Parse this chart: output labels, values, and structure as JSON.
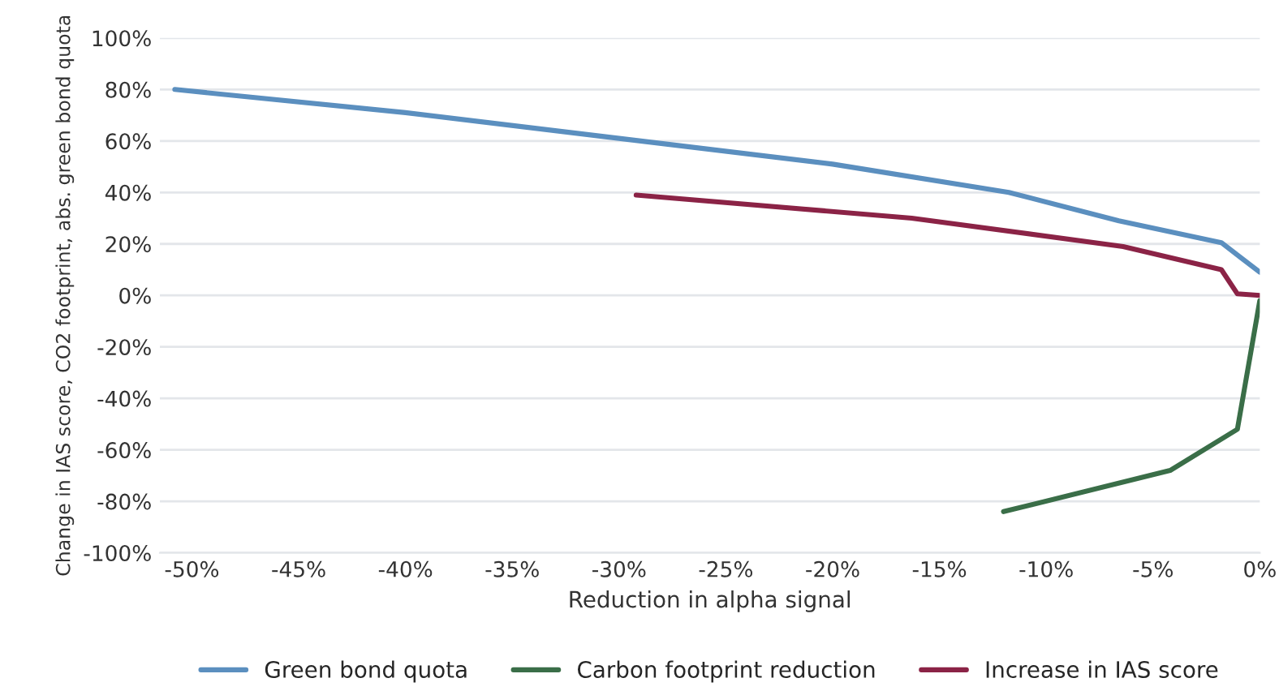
{
  "chart_data": {
    "type": "line",
    "xlabel": "Reduction in alpha signal",
    "ylabel": "Change in IAS score, CO2 footprint, abs. green bond quota",
    "series": [
      {
        "name": "Green bond quota",
        "color": "#5b8fbf",
        "x": [
          -50.8,
          -40,
          -30,
          -20,
          -11.75,
          -6.6,
          -1.8,
          0
        ],
        "values": [
          80,
          71,
          61,
          51,
          40,
          29,
          20.5,
          9
        ]
      },
      {
        "name": "Carbon footprint reduction",
        "color": "#3a6e48",
        "x": [
          -12.0,
          -4.2,
          -1.05,
          0
        ],
        "values": [
          -84,
          -68,
          -52,
          -2
        ]
      },
      {
        "name": "Increase in IAS score",
        "color": "#8b2346",
        "x": [
          -29.2,
          -16.3,
          -6.4,
          -1.8,
          -1.05,
          0
        ],
        "values": [
          39,
          30,
          19,
          10,
          0.6,
          0
        ]
      }
    ],
    "xlim": [
      -51.5,
      0
    ],
    "ylim": [
      -100,
      100
    ],
    "xticks": [
      {
        "value": -50,
        "label": "-50%"
      },
      {
        "value": -45,
        "label": "-45%"
      },
      {
        "value": -40,
        "label": "-40%"
      },
      {
        "value": -35,
        "label": "-35%"
      },
      {
        "value": -30,
        "label": "-30%"
      },
      {
        "value": -25,
        "label": "-25%"
      },
      {
        "value": -20,
        "label": "-20%"
      },
      {
        "value": -15,
        "label": "-15%"
      },
      {
        "value": -10,
        "label": "-10%"
      },
      {
        "value": -5,
        "label": "-5%"
      },
      {
        "value": 0,
        "label": "0%"
      }
    ],
    "yticks": [
      {
        "value": -100,
        "label": "-100%"
      },
      {
        "value": -80,
        "label": "-80%"
      },
      {
        "value": -60,
        "label": "-60%"
      },
      {
        "value": -40,
        "label": "-40%"
      },
      {
        "value": -20,
        "label": "-20%"
      },
      {
        "value": 0,
        "label": "0%"
      },
      {
        "value": 20,
        "label": "20%"
      },
      {
        "value": 40,
        "label": "40%"
      },
      {
        "value": 60,
        "label": "60%"
      },
      {
        "value": 80,
        "label": "80%"
      },
      {
        "value": 100,
        "label": "100%"
      }
    ],
    "grid": "y",
    "legend": "bottom",
    "marker": "none",
    "line_style": "solid"
  }
}
